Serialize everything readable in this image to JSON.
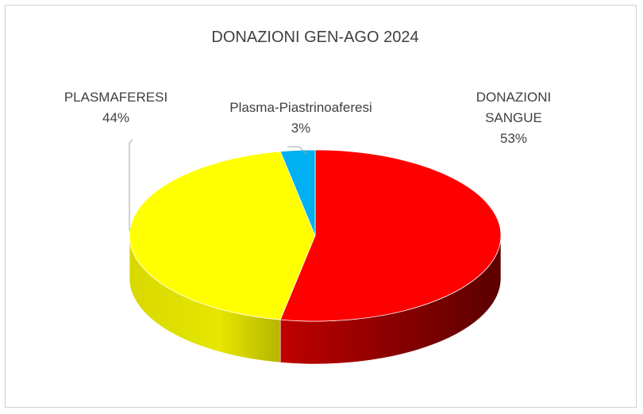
{
  "chart_data": {
    "type": "pie",
    "title": "DONAZIONI GEN-AGO 2024",
    "slices": [
      {
        "name": "DONAZIONI SANGUE",
        "label_lines": [
          "DONAZIONI",
          "SANGUE"
        ],
        "value": 53,
        "pct_label": "53%",
        "color": "#ff0000",
        "side_color": "#8b0000"
      },
      {
        "name": "PLASMAFERESI",
        "label_lines": [
          "PLASMAFERESI"
        ],
        "value": 44,
        "pct_label": "44%",
        "color": "#ffff00",
        "side_color": "#c8c800"
      },
      {
        "name": "Plasma-Piastrinoaferesi",
        "label_lines": [
          "Plasma-Piastrinoaferesi"
        ],
        "value": 3,
        "pct_label": "3%",
        "color": "#00b0f0",
        "side_color": "#0080b0"
      }
    ],
    "legend": "none",
    "style": "3d-pie"
  }
}
